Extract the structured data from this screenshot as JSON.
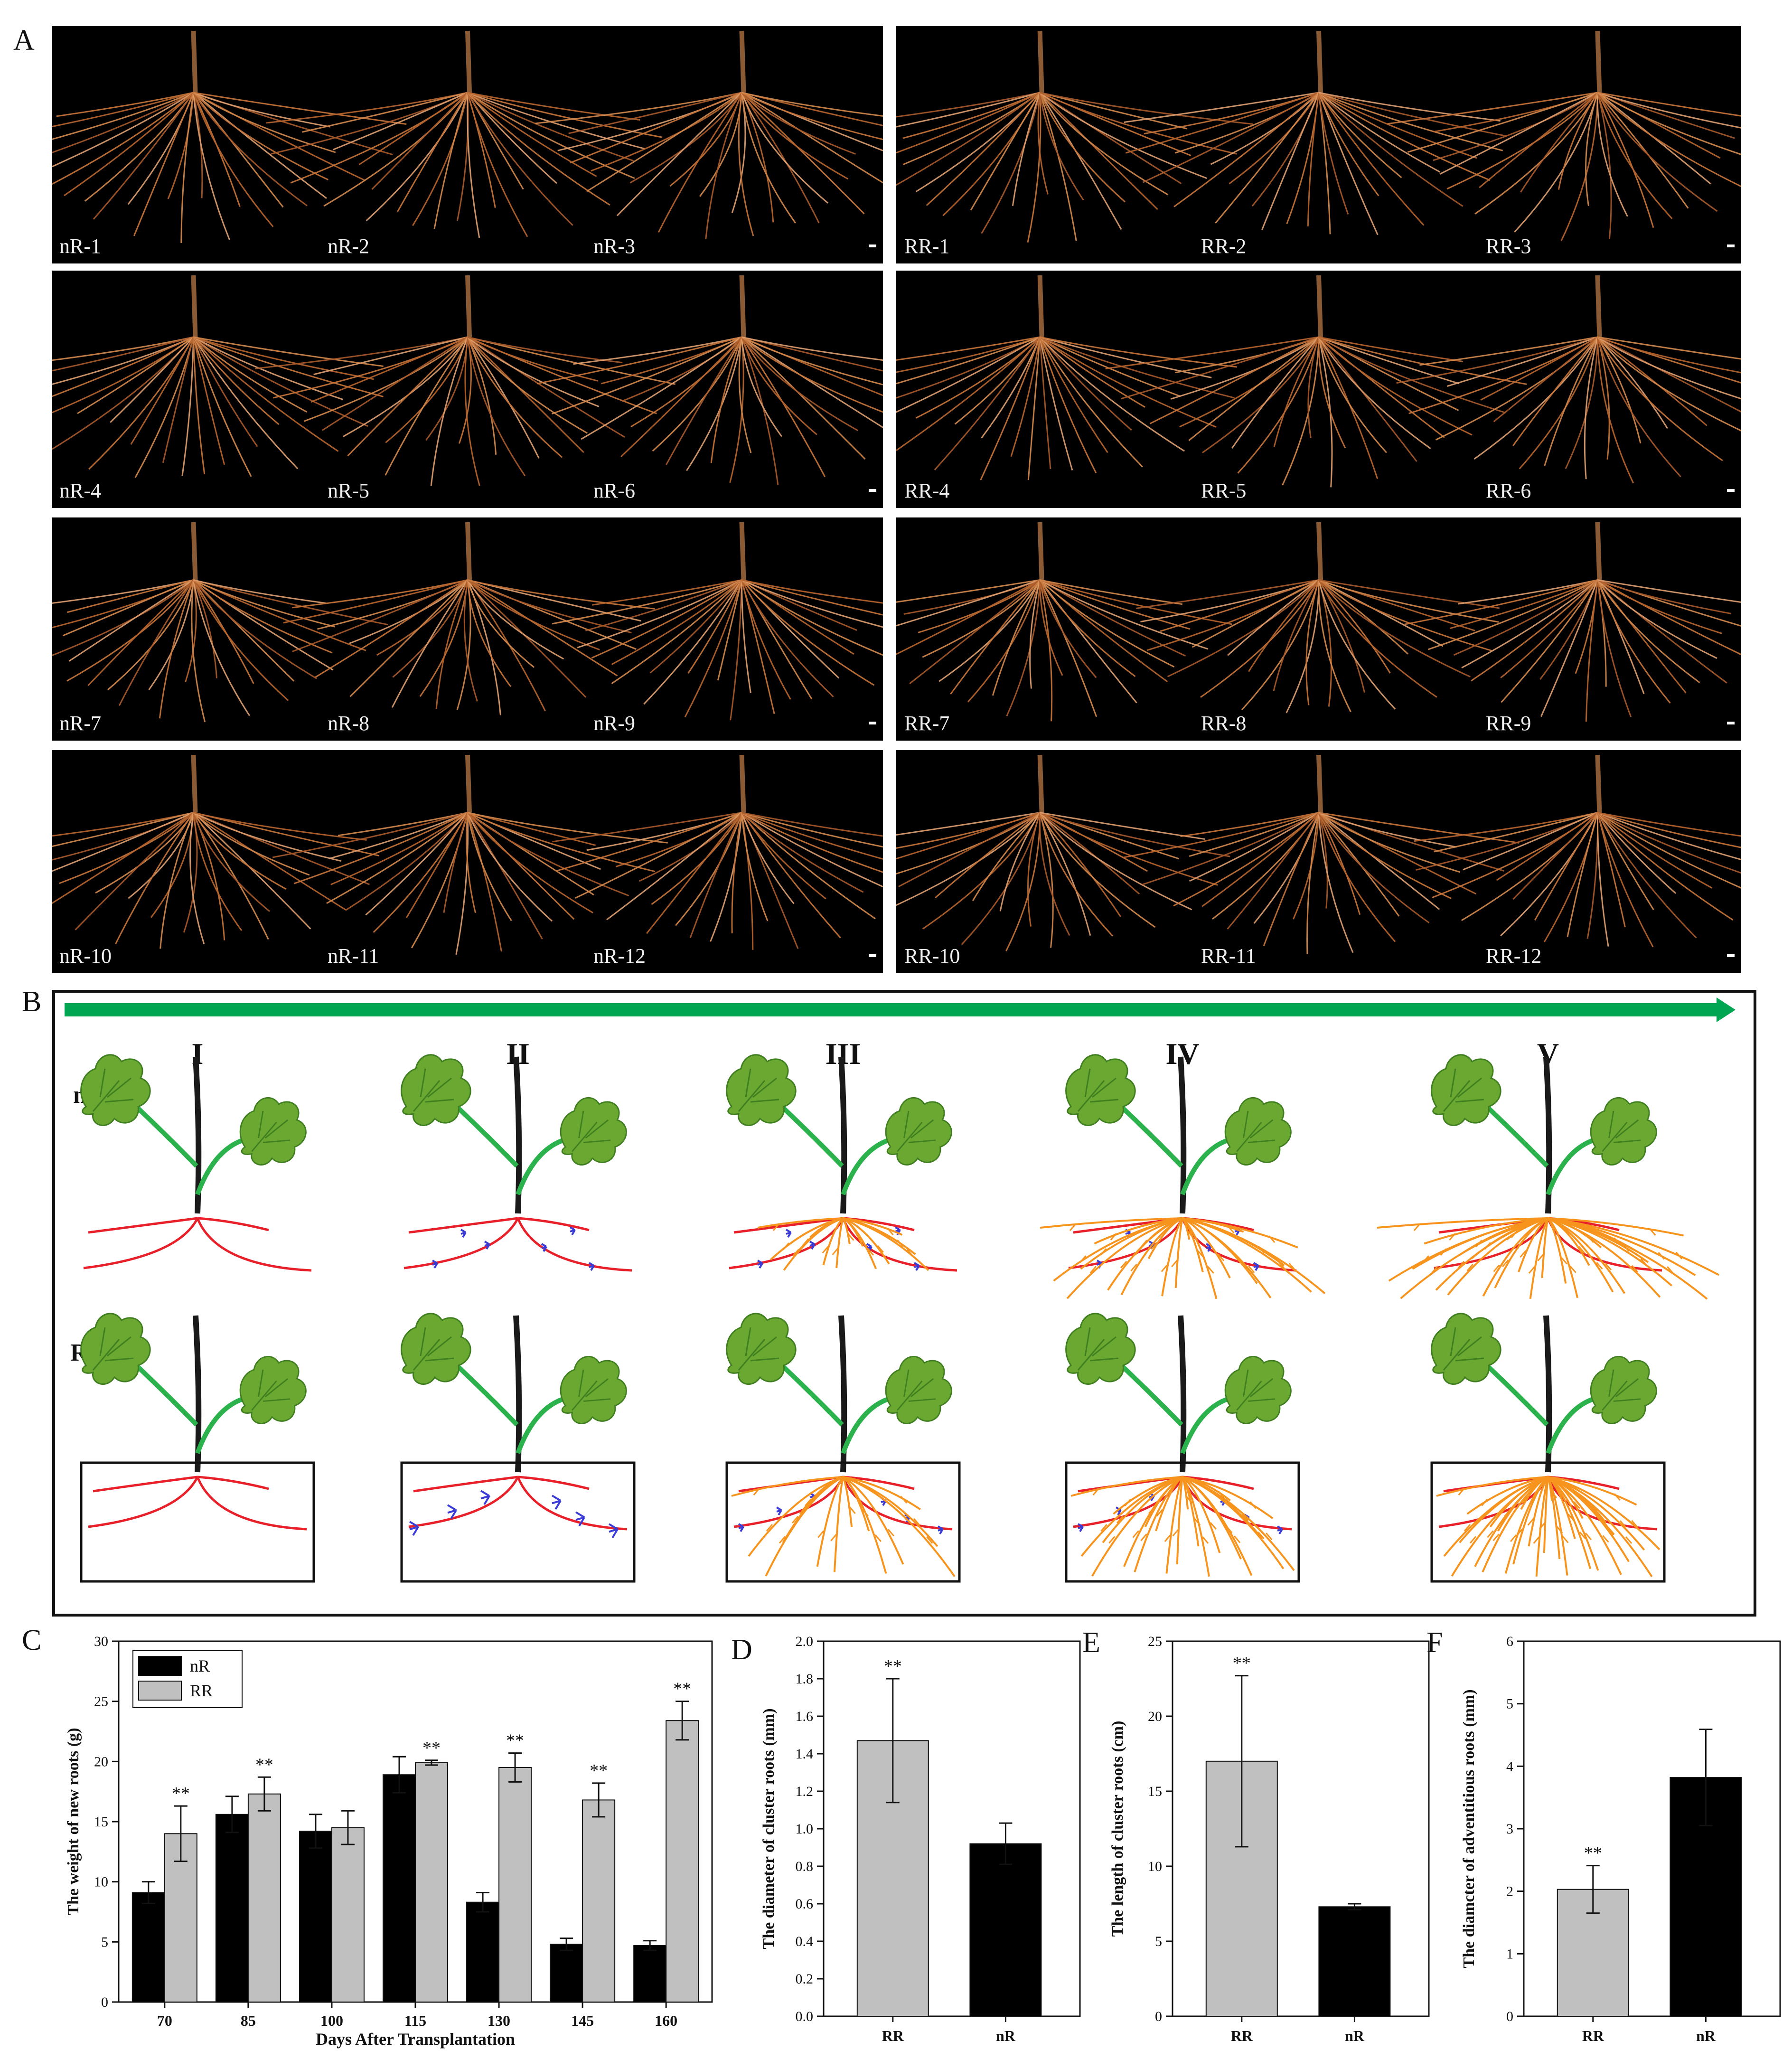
{
  "panel_labels": {
    "a": "A",
    "b": "B",
    "c": "C",
    "d": "D",
    "e": "E",
    "f": "F"
  },
  "photo_labels": {
    "nR": [
      "nR-1",
      "nR-2",
      "nR-3",
      "nR-4",
      "nR-5",
      "nR-6",
      "nR-7",
      "nR-8",
      "nR-9",
      "nR-10",
      "nR-11",
      "nR-12"
    ],
    "RR": [
      "RR-1",
      "RR-2",
      "RR-3",
      "RR-4",
      "RR-5",
      "RR-6",
      "RR-7",
      "RR-8",
      "RR-9",
      "RR-10",
      "RR-11",
      "RR-12"
    ]
  },
  "stages": [
    "I",
    "II",
    "III",
    "IV",
    "V"
  ],
  "row_labels": {
    "top": "nR",
    "bottom": "RR"
  },
  "colors": {
    "black_bar": "#000000",
    "gray_bar": "#c0c0c0",
    "arrow": "#00a651",
    "root_red": "#e8202a",
    "root_orange": "#f7941d",
    "root_blue": "#3b3bd8",
    "leaf": "#6aa832",
    "stem": "#1a1a1a",
    "petiole": "#2bb24c"
  },
  "chart_data": [
    {
      "type": "bar",
      "panel": "C",
      "categories": [
        "70",
        "85",
        "100",
        "115",
        "130",
        "145",
        "160"
      ],
      "series": [
        {
          "name": "nR",
          "color": "#000000",
          "values": [
            9.1,
            15.6,
            14.2,
            18.9,
            8.3,
            4.8,
            4.7
          ],
          "errors": [
            0.9,
            1.5,
            1.4,
            1.5,
            0.8,
            0.5,
            0.4
          ],
          "sig": [
            "",
            "",
            "",
            "",
            "",
            "",
            ""
          ]
        },
        {
          "name": "RR",
          "color": "#c0c0c0",
          "values": [
            14.0,
            17.3,
            14.5,
            19.9,
            19.5,
            16.8,
            23.4
          ],
          "errors": [
            2.3,
            1.4,
            1.4,
            0.2,
            1.2,
            1.4,
            1.6
          ],
          "sig": [
            "**",
            "**",
            "",
            "**",
            "**",
            "**",
            "**"
          ]
        }
      ],
      "xlabel": "Days After Transplantation",
      "ylabel": "The weight of new roots  (g)",
      "ylim": [
        0,
        30
      ],
      "yticks": [
        "0",
        "5",
        "10",
        "15",
        "20",
        "25",
        "30"
      ],
      "legend": "top-left"
    },
    {
      "type": "bar",
      "panel": "D",
      "categories": [
        "RR",
        "nR"
      ],
      "values": [
        1.47,
        0.92
      ],
      "errors": [
        0.33,
        0.11
      ],
      "colors": [
        "#c0c0c0",
        "#000000"
      ],
      "sig": [
        "**",
        ""
      ],
      "ylabel": "The diameter of cluster roots  (mm)",
      "ylim": [
        0,
        2.0
      ],
      "yticks": [
        "0.0",
        "0.2",
        "0.4",
        "0.6",
        "0.8",
        "1.0",
        "1.2",
        "1.4",
        "1.6",
        "1.8",
        "2.0"
      ]
    },
    {
      "type": "bar",
      "panel": "E",
      "categories": [
        "RR",
        "nR"
      ],
      "values": [
        17.0,
        7.3
      ],
      "errors": [
        5.7,
        0.2
      ],
      "colors": [
        "#c0c0c0",
        "#000000"
      ],
      "sig": [
        "**",
        ""
      ],
      "ylabel": "The length of cluster roots  (cm)",
      "ylim": [
        0,
        25
      ],
      "yticks": [
        "0",
        "5",
        "10",
        "15",
        "20",
        "25"
      ]
    },
    {
      "type": "bar",
      "panel": "F",
      "categories": [
        "RR",
        "nR"
      ],
      "values": [
        2.03,
        3.82
      ],
      "errors": [
        0.38,
        0.77
      ],
      "colors": [
        "#c0c0c0",
        "#000000"
      ],
      "sig": [
        "**",
        ""
      ],
      "ylabel": "The diamcter of adventitious roots  (mm)",
      "ylim": [
        0,
        6
      ],
      "yticks": [
        "0",
        "1",
        "2",
        "3",
        "4",
        "5",
        "6"
      ]
    }
  ]
}
